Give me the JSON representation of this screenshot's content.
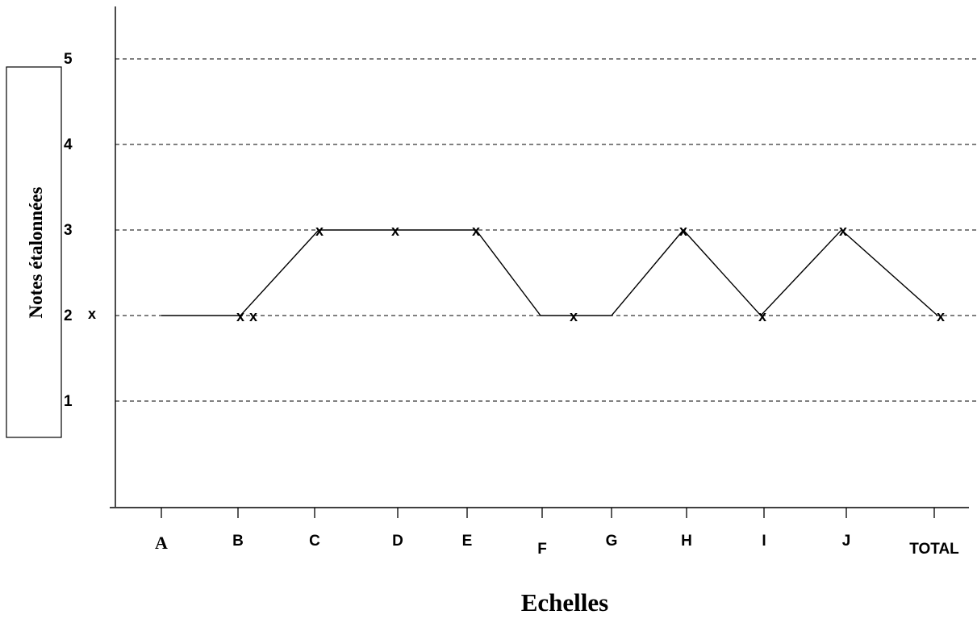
{
  "chart_data": {
    "type": "line",
    "xlabel": "Echelles",
    "ylabel": "Notes étalonnées",
    "categories": [
      "A",
      "B",
      "C",
      "D",
      "E",
      "F",
      "G",
      "H",
      "I",
      "J",
      "TOTAL"
    ],
    "yticks": [
      "1",
      "2",
      "3",
      "4",
      "5"
    ],
    "ylim": [
      0,
      5.5
    ],
    "grid": "horizontal dashed at 1, 2, 3, 4, 5",
    "marker": "x",
    "series": [
      {
        "values": [
          2,
          2,
          3,
          3,
          3,
          2,
          2,
          3,
          2,
          3,
          2
        ]
      }
    ],
    "extra_markers": [
      {
        "label": "x",
        "position": "beside y-axis tick 2"
      },
      {
        "label": "x",
        "position": "second mark after B at 2"
      },
      {
        "label": "x",
        "position": "between F and G at 2"
      }
    ]
  }
}
